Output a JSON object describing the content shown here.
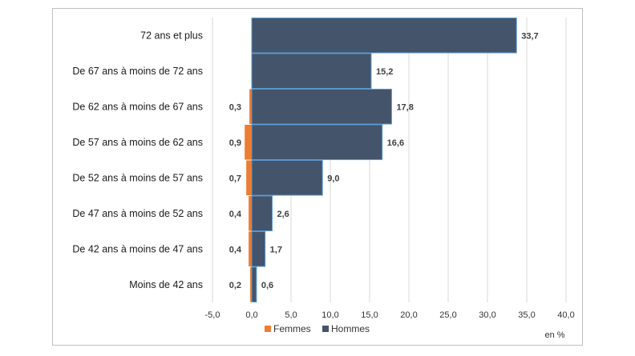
{
  "chart_data": {
    "type": "bar",
    "orientation": "horizontal",
    "categories": [
      "72 ans et plus",
      "De 67 ans à moins de 72 ans",
      "De 62 ans à moins de 67 ans",
      "De 57 ans à moins de 62 ans",
      "De 52 ans à moins de 57 ans",
      "De 47 ans à moins de 52 ans",
      "De 42 ans à moins de 47 ans",
      "Moins de 42 ans"
    ],
    "series": [
      {
        "name": "Femmes",
        "color": "#ed7d31",
        "values": [
          0,
          0,
          -0.3,
          -0.9,
          -0.7,
          -0.4,
          -0.4,
          -0.2
        ],
        "labels": [
          "",
          "",
          "0,3",
          "0,9",
          "0,7",
          "0,4",
          "0,4",
          "0,2"
        ]
      },
      {
        "name": "Hommes",
        "color": "#44546a",
        "values": [
          33.7,
          15.2,
          17.8,
          16.6,
          9.0,
          2.6,
          1.7,
          0.6
        ],
        "labels": [
          "33,7",
          "15,2",
          "17,8",
          "16,6",
          "9,0",
          "2,6",
          "1,7",
          "0,6"
        ]
      }
    ],
    "xlim": [
      -5,
      40
    ],
    "x_ticks": [
      "-5,0",
      "0,0",
      "5,0",
      "10,0",
      "15,0",
      "20,0",
      "25,0",
      "30,0",
      "35,0",
      "40,0"
    ],
    "x_tick_values": [
      -5,
      0,
      5,
      10,
      15,
      20,
      25,
      30,
      35,
      40
    ],
    "unit_label": "en %",
    "legend_position": "bottom",
    "grid": true
  }
}
